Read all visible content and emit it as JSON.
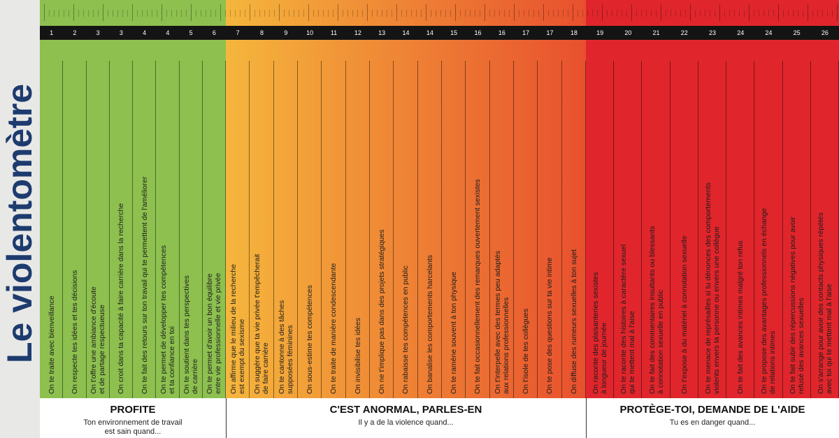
{
  "title": "Le violentomètre",
  "colors": {
    "green": "#8dc04f",
    "orange_start": "#f5b63c",
    "orange_end": "#e8502e",
    "red": "#e0262c"
  },
  "columns": [
    {
      "number": "1",
      "zone": "green",
      "text": "On te traite avec bienveillance"
    },
    {
      "number": "2",
      "zone": "green",
      "text": "On respecte tes idées et tes décisions"
    },
    {
      "number": "3",
      "zone": "green",
      "text": "On t'offre une ambiance d'écoute\net de partage respectueuse"
    },
    {
      "number": "3",
      "zone": "green",
      "text": "On croit dans ta capacité à faire carrière dans la recherche"
    },
    {
      "number": "4",
      "zone": "green",
      "text": "On te fait des retours sur ton travail qui te permettent de l'améliorer"
    },
    {
      "number": "4",
      "zone": "green",
      "text": "On te permet de développer tes compétences\net ta confiance en toi"
    },
    {
      "number": "5",
      "zone": "green",
      "text": "On te soutient dans tes perspectives\nde carrière"
    },
    {
      "number": "6",
      "zone": "green",
      "text": "On te permet d'avoir un bon équilibre\nentre vie professionnelle et vie privée"
    },
    {
      "number": "7",
      "zone": "orange",
      "text": "On affirme que le milieu de la recherche\nest exempt du sexisme"
    },
    {
      "number": "8",
      "zone": "orange",
      "text": "On suggère que ta vie privée t'empêcherait\nde faire carrière"
    },
    {
      "number": "9",
      "zone": "orange",
      "text": "On te cantonne à des tâches\nsupposées féminines"
    },
    {
      "number": "10",
      "zone": "orange",
      "text": "On sous-estime tes compétences"
    },
    {
      "number": "11",
      "zone": "orange",
      "text": "On te traite de manière condescendante"
    },
    {
      "number": "12",
      "zone": "orange",
      "text": "On invisibilise tes idées"
    },
    {
      "number": "13",
      "zone": "orange",
      "text": "On ne t'implique pas dans des projets stratégiques"
    },
    {
      "number": "14",
      "zone": "orange",
      "text": "On rabaisse tes compétences en public"
    },
    {
      "number": "14",
      "zone": "orange",
      "text": "On banalise les comportements harcelants"
    },
    {
      "number": "15",
      "zone": "orange",
      "text": "On te ramène souvent à ton physique"
    },
    {
      "number": "16",
      "zone": "orange",
      "text": "On te fait occasionnellement des remarques ouvertement sexistes"
    },
    {
      "number": "16",
      "zone": "orange",
      "text": "On t'interpelle avec des termes peu adaptés\naux relations professionnelles"
    },
    {
      "number": "17",
      "zone": "orange",
      "text": "On t'isole de tes collègues"
    },
    {
      "number": "17",
      "zone": "orange",
      "text": "On te pose des questions sur ta vie intime"
    },
    {
      "number": "18",
      "zone": "orange",
      "text": "On diffuse des rumeurs sexuelles à ton sujet"
    },
    {
      "number": "19",
      "zone": "red",
      "text": "On raconte des plaisanteries sexistes\nà longueur de journée"
    },
    {
      "number": "20",
      "zone": "red",
      "text": "On te raconte des histoires à caractère sexuel\nqui te mettent mal à l'aise"
    },
    {
      "number": "21",
      "zone": "red",
      "text": "On te fait des commentaires insultants ou blessants\nà connotation sexuelle en public"
    },
    {
      "number": "22",
      "zone": "red",
      "text": "On t'expose à du matériel à connotation sexuelle"
    },
    {
      "number": "23",
      "zone": "red",
      "text": "On te menace de représailles si tu dénonces des comportements\nviolents envers ta personne ou envers une collègue"
    },
    {
      "number": "24",
      "zone": "red",
      "text": "On te fait des avances intimes malgré ton refus"
    },
    {
      "number": "24",
      "zone": "red",
      "text": "On te propose des avantages professionnels en échange\nde relations intimes"
    },
    {
      "number": "25",
      "zone": "red",
      "text": "On te fait subir des répercussions négatives pour avoir\nrefusé des avances sexuelles"
    },
    {
      "number": "26",
      "zone": "red",
      "text": "On s'arrange pour avoir des contacts physiques répétés\navec toi qui te mettent mal à l'aise"
    }
  ],
  "zones": [
    {
      "heading": "PROFITE",
      "sub": "Ton environnement de travail\nest sain quand..."
    },
    {
      "heading": "C'EST ANORMAL, PARLES-EN",
      "sub": "Il y a de la violence quand..."
    },
    {
      "heading": "PROTÈGE-TOI, DEMANDE DE L'AIDE",
      "sub": "Tu es en danger quand..."
    }
  ]
}
